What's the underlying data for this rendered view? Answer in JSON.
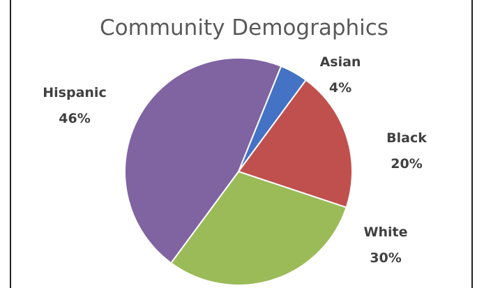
{
  "chart_data": {
    "type": "pie",
    "title": "Community Demographics",
    "slices": [
      {
        "name": "Asian",
        "value": 4,
        "label_pct": "4%",
        "color": "#4472C4"
      },
      {
        "name": "Black",
        "value": 20,
        "label_pct": "20%",
        "color": "#C0504D"
      },
      {
        "name": "White",
        "value": 30,
        "label_pct": "30%",
        "color": "#9BBB59"
      },
      {
        "name": "Hispanic",
        "value": 46,
        "label_pct": "46%",
        "color": "#8064A2"
      }
    ],
    "start_angle_deg": 22,
    "direction": "clockwise",
    "legend": "none",
    "labels": "outside-end"
  }
}
